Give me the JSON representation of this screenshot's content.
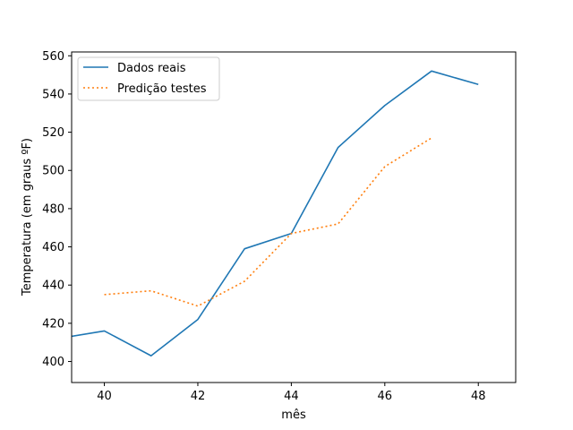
{
  "chart_data": {
    "type": "line",
    "title": "",
    "xlabel": "mês",
    "ylabel": "Temperatura (em graus ºF)",
    "xlim": [
      39.3,
      48.8
    ],
    "ylim": [
      389,
      562
    ],
    "xticks": [
      40,
      42,
      44,
      46,
      48
    ],
    "yticks": [
      400,
      420,
      440,
      460,
      480,
      500,
      520,
      540,
      560
    ],
    "grid": false,
    "legend_position": "top-left",
    "series": [
      {
        "name": "Dados reais",
        "color": "#1f77b4",
        "style": "solid",
        "x": [
          39,
          40,
          41,
          42,
          43,
          44,
          45,
          46,
          47,
          48
        ],
        "y": [
          412,
          416,
          403,
          422,
          459,
          467,
          512,
          534,
          552,
          545
        ]
      },
      {
        "name": "Predição testes",
        "color": "#ff7f0e",
        "style": "dotted",
        "x": [
          40,
          41,
          42,
          43,
          44,
          45,
          46,
          47
        ],
        "y": [
          435,
          437,
          429,
          442,
          467,
          472,
          502,
          517
        ]
      }
    ]
  }
}
